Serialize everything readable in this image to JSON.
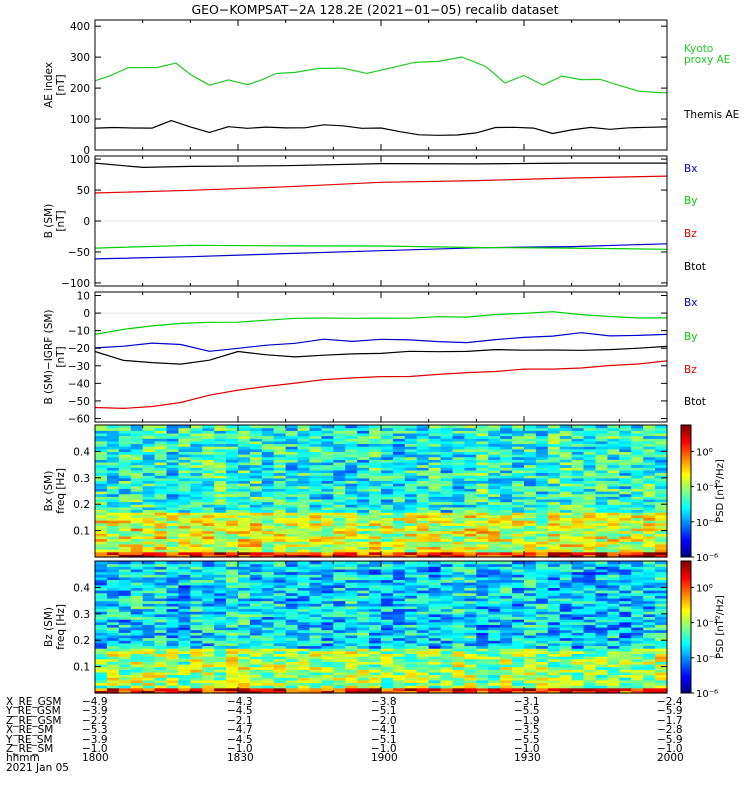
{
  "title": "GEO−KOMPSAT−2A 128.2E (2021−01−05) recalib dataset",
  "colors": {
    "black": "#000000",
    "blue": "#0000c8",
    "green": "#00d000",
    "red": "#e00000",
    "kyoto": "#22cc22"
  },
  "panels": [
    {
      "ylabel_line1": "AE index",
      "ylabel_line2": "[nT]",
      "yticks": [
        "0",
        "100",
        "200",
        "300",
        "400"
      ],
      "legend": [
        "Kyoto",
        "proxy AE",
        "Themis AE"
      ]
    },
    {
      "ylabel_line1": "B (SM)",
      "ylabel_line2": "[nT]",
      "yticks": [
        "−100",
        "−50",
        "0",
        "50",
        "100"
      ],
      "legend": [
        "Bx",
        "By",
        "Bz",
        "Btot"
      ]
    },
    {
      "ylabel_line1": "B (SM)−IGRF (SM)",
      "ylabel_line2": "[nT]",
      "yticks": [
        "−60",
        "−50",
        "−40",
        "−30",
        "−20",
        "−10",
        "0",
        "10"
      ],
      "legend": [
        "Bx",
        "By",
        "Bz",
        "Btot"
      ]
    },
    {
      "ylabel_line1": "Bx (SM)",
      "ylabel_line2": "freq [Hz]",
      "yticks": [
        "0.1",
        "0.2",
        "0.3",
        "0.4"
      ],
      "colorbar_label": "PSD [nT²/Hz]",
      "cbar_ticks": [
        "10⁰",
        "10⁻²",
        "10⁻⁴",
        "10⁻⁶"
      ]
    },
    {
      "ylabel_line1": "Bz (SM)",
      "ylabel_line2": "freq [Hz]",
      "yticks": [
        "0.1",
        "0.2",
        "0.3",
        "0.4"
      ],
      "colorbar_label": "PSD [nT²/Hz]",
      "cbar_ticks": [
        "10⁰",
        "10⁻²",
        "10⁻⁴",
        "10⁻⁶"
      ]
    }
  ],
  "ephemeris": {
    "rows": [
      {
        "label": "X_RE_GSM",
        "values": [
          "−4.9",
          "−4.3",
          "−3.8",
          "−3.1",
          "−2.4"
        ]
      },
      {
        "label": "Y_RE_GSM",
        "values": [
          "−3.9",
          "−4.5",
          "−5.1",
          "−5.5",
          "−5.9"
        ]
      },
      {
        "label": "Z_RE_GSM",
        "values": [
          "−2.2",
          "−2.1",
          "−2.0",
          "−1.9",
          "−1.7"
        ]
      },
      {
        "label": "X_RE_SM",
        "values": [
          "−5.3",
          "−4.7",
          "−4.1",
          "−3.5",
          "−2.8"
        ]
      },
      {
        "label": "Y_RE_SM",
        "values": [
          "−3.9",
          "−4.5",
          "−5.1",
          "−5.5",
          "−5.9"
        ]
      },
      {
        "label": "Z_RE_SM",
        "values": [
          "−1.0",
          "−1.0",
          "−1.0",
          "−1.0",
          "−1.0"
        ]
      },
      {
        "label": "hhmm",
        "values": [
          "1800",
          "1830",
          "1900",
          "1930",
          "2000"
        ]
      }
    ],
    "date_label": "2021 Jan 05"
  },
  "chart_data": [
    {
      "type": "line",
      "x_unit": "minutes since 18:00 UT",
      "xlim": [
        0,
        120
      ],
      "ylim": [
        0,
        420
      ],
      "series": [
        {
          "name": "Kyoto proxy AE",
          "color": "#22cc22",
          "x": [
            0,
            3,
            7,
            13,
            17,
            20,
            24,
            28,
            32,
            35,
            38,
            42,
            47,
            52,
            57,
            62,
            67,
            72,
            77,
            82,
            86,
            90,
            94,
            98,
            102,
            106,
            110,
            114,
            118,
            120
          ],
          "y": [
            225,
            240,
            265,
            265,
            280,
            245,
            210,
            228,
            210,
            228,
            248,
            250,
            265,
            265,
            248,
            265,
            282,
            285,
            300,
            270,
            215,
            240,
            210,
            240,
            228,
            228,
            210,
            190,
            185,
            185
          ]
        },
        {
          "name": "Themis AE",
          "color": "#000000",
          "x": [
            0,
            4,
            8,
            12,
            16,
            20,
            24,
            28,
            32,
            36,
            40,
            44,
            48,
            52,
            56,
            60,
            64,
            68,
            72,
            76,
            80,
            84,
            88,
            92,
            96,
            100,
            104,
            108,
            112,
            116,
            120
          ],
          "y": [
            72,
            72,
            72,
            72,
            95,
            75,
            58,
            75,
            70,
            75,
            70,
            72,
            80,
            78,
            70,
            72,
            60,
            50,
            48,
            50,
            55,
            72,
            75,
            70,
            55,
            65,
            72,
            68,
            72,
            72,
            75
          ]
        }
      ]
    },
    {
      "type": "line",
      "x_unit": "minutes since 18:00 UT",
      "xlim": [
        0,
        120
      ],
      "ylim": [
        -105,
        105
      ],
      "series": [
        {
          "name": "Bx",
          "color": "#0000c8",
          "x": [
            0,
            20,
            40,
            60,
            80,
            100,
            120
          ],
          "y": [
            -62,
            -58,
            -52,
            -48,
            -44,
            -41,
            -37
          ]
        },
        {
          "name": "By",
          "color": "#00d000",
          "x": [
            0,
            20,
            40,
            60,
            80,
            100,
            120
          ],
          "y": [
            -43,
            -40,
            -40,
            -40,
            -42,
            -44,
            -46
          ]
        },
        {
          "name": "Bz",
          "color": "#e00000",
          "x": [
            0,
            20,
            40,
            60,
            80,
            100,
            120
          ],
          "y": [
            46,
            50,
            56,
            62,
            66,
            69,
            73
          ]
        },
        {
          "name": "Btot",
          "color": "#000000",
          "x": [
            0,
            10,
            20,
            40,
            60,
            80,
            100,
            120
          ],
          "y": [
            93,
            86,
            88,
            90,
            92,
            93,
            93,
            94
          ]
        }
      ]
    },
    {
      "type": "line",
      "x_unit": "minutes since 18:00 UT",
      "xlim": [
        0,
        120
      ],
      "ylim": [
        -62,
        12
      ],
      "series": [
        {
          "name": "Bx",
          "color": "#0000c8",
          "x": [
            0,
            6,
            12,
            18,
            24,
            30,
            36,
            42,
            48,
            54,
            60,
            66,
            72,
            78,
            84,
            90,
            96,
            102,
            108,
            114,
            120
          ],
          "y": [
            -20,
            -19,
            -17,
            -18,
            -22,
            -20,
            -18,
            -17,
            -15,
            -16,
            -15,
            -15,
            -16,
            -17,
            -15,
            -14,
            -13,
            -11,
            -13,
            -13,
            -12
          ]
        },
        {
          "name": "By",
          "color": "#00d000",
          "x": [
            0,
            6,
            12,
            18,
            24,
            30,
            36,
            42,
            48,
            54,
            60,
            66,
            72,
            78,
            84,
            90,
            96,
            102,
            108,
            114,
            120
          ],
          "y": [
            -12,
            -9,
            -7,
            -6,
            -5,
            -5,
            -4,
            -3,
            -3,
            -3,
            -3,
            -3,
            -2,
            -2,
            -1,
            0,
            1,
            -1,
            -2,
            -3,
            -3
          ]
        },
        {
          "name": "Bz",
          "color": "#e00000",
          "x": [
            0,
            6,
            12,
            18,
            24,
            30,
            36,
            42,
            48,
            54,
            60,
            66,
            72,
            78,
            84,
            90,
            96,
            102,
            108,
            114,
            120
          ],
          "y": [
            -54,
            -54,
            -53,
            -51,
            -47,
            -44,
            -42,
            -40,
            -38,
            -37,
            -36,
            -36,
            -35,
            -34,
            -33,
            -32,
            -32,
            -31,
            -30,
            -29,
            -27
          ]
        },
        {
          "name": "Btot",
          "color": "#000000",
          "x": [
            0,
            6,
            12,
            18,
            24,
            30,
            36,
            42,
            48,
            54,
            60,
            66,
            72,
            78,
            84,
            90,
            96,
            102,
            108,
            114,
            120
          ],
          "y": [
            -22,
            -27,
            -28,
            -29,
            -27,
            -22,
            -24,
            -25,
            -24,
            -23,
            -23,
            -22,
            -22,
            -22,
            -21,
            -21,
            -21,
            -21,
            -21,
            -20,
            -19
          ]
        }
      ]
    },
    {
      "type": "heatmap",
      "title": "Bx (SM)",
      "x_unit": "minutes since 18:00 UT",
      "xlim": [
        0,
        120
      ],
      "ylim": [
        0,
        0.5
      ],
      "zlabel": "PSD [nT²/Hz]",
      "zlim_log10": [
        -6,
        1.5
      ],
      "freq_bins": 50,
      "time_bins": 48,
      "low_freq_band_log10": [
        -2,
        -1.2
      ],
      "high_freq_band_log10": [
        -3.8,
        -2.2
      ]
    },
    {
      "type": "heatmap",
      "title": "Bz (SM)",
      "x_unit": "minutes since 18:00 UT",
      "xlim": [
        0,
        120
      ],
      "ylim": [
        0,
        0.5
      ],
      "zlabel": "PSD [nT²/Hz]",
      "zlim_log10": [
        -6,
        1.5
      ],
      "freq_bins": 50,
      "time_bins": 48,
      "low_freq_band_log10": [
        -2.5,
        -1.5
      ],
      "high_freq_band_log10": [
        -4.2,
        -2.6
      ]
    }
  ]
}
